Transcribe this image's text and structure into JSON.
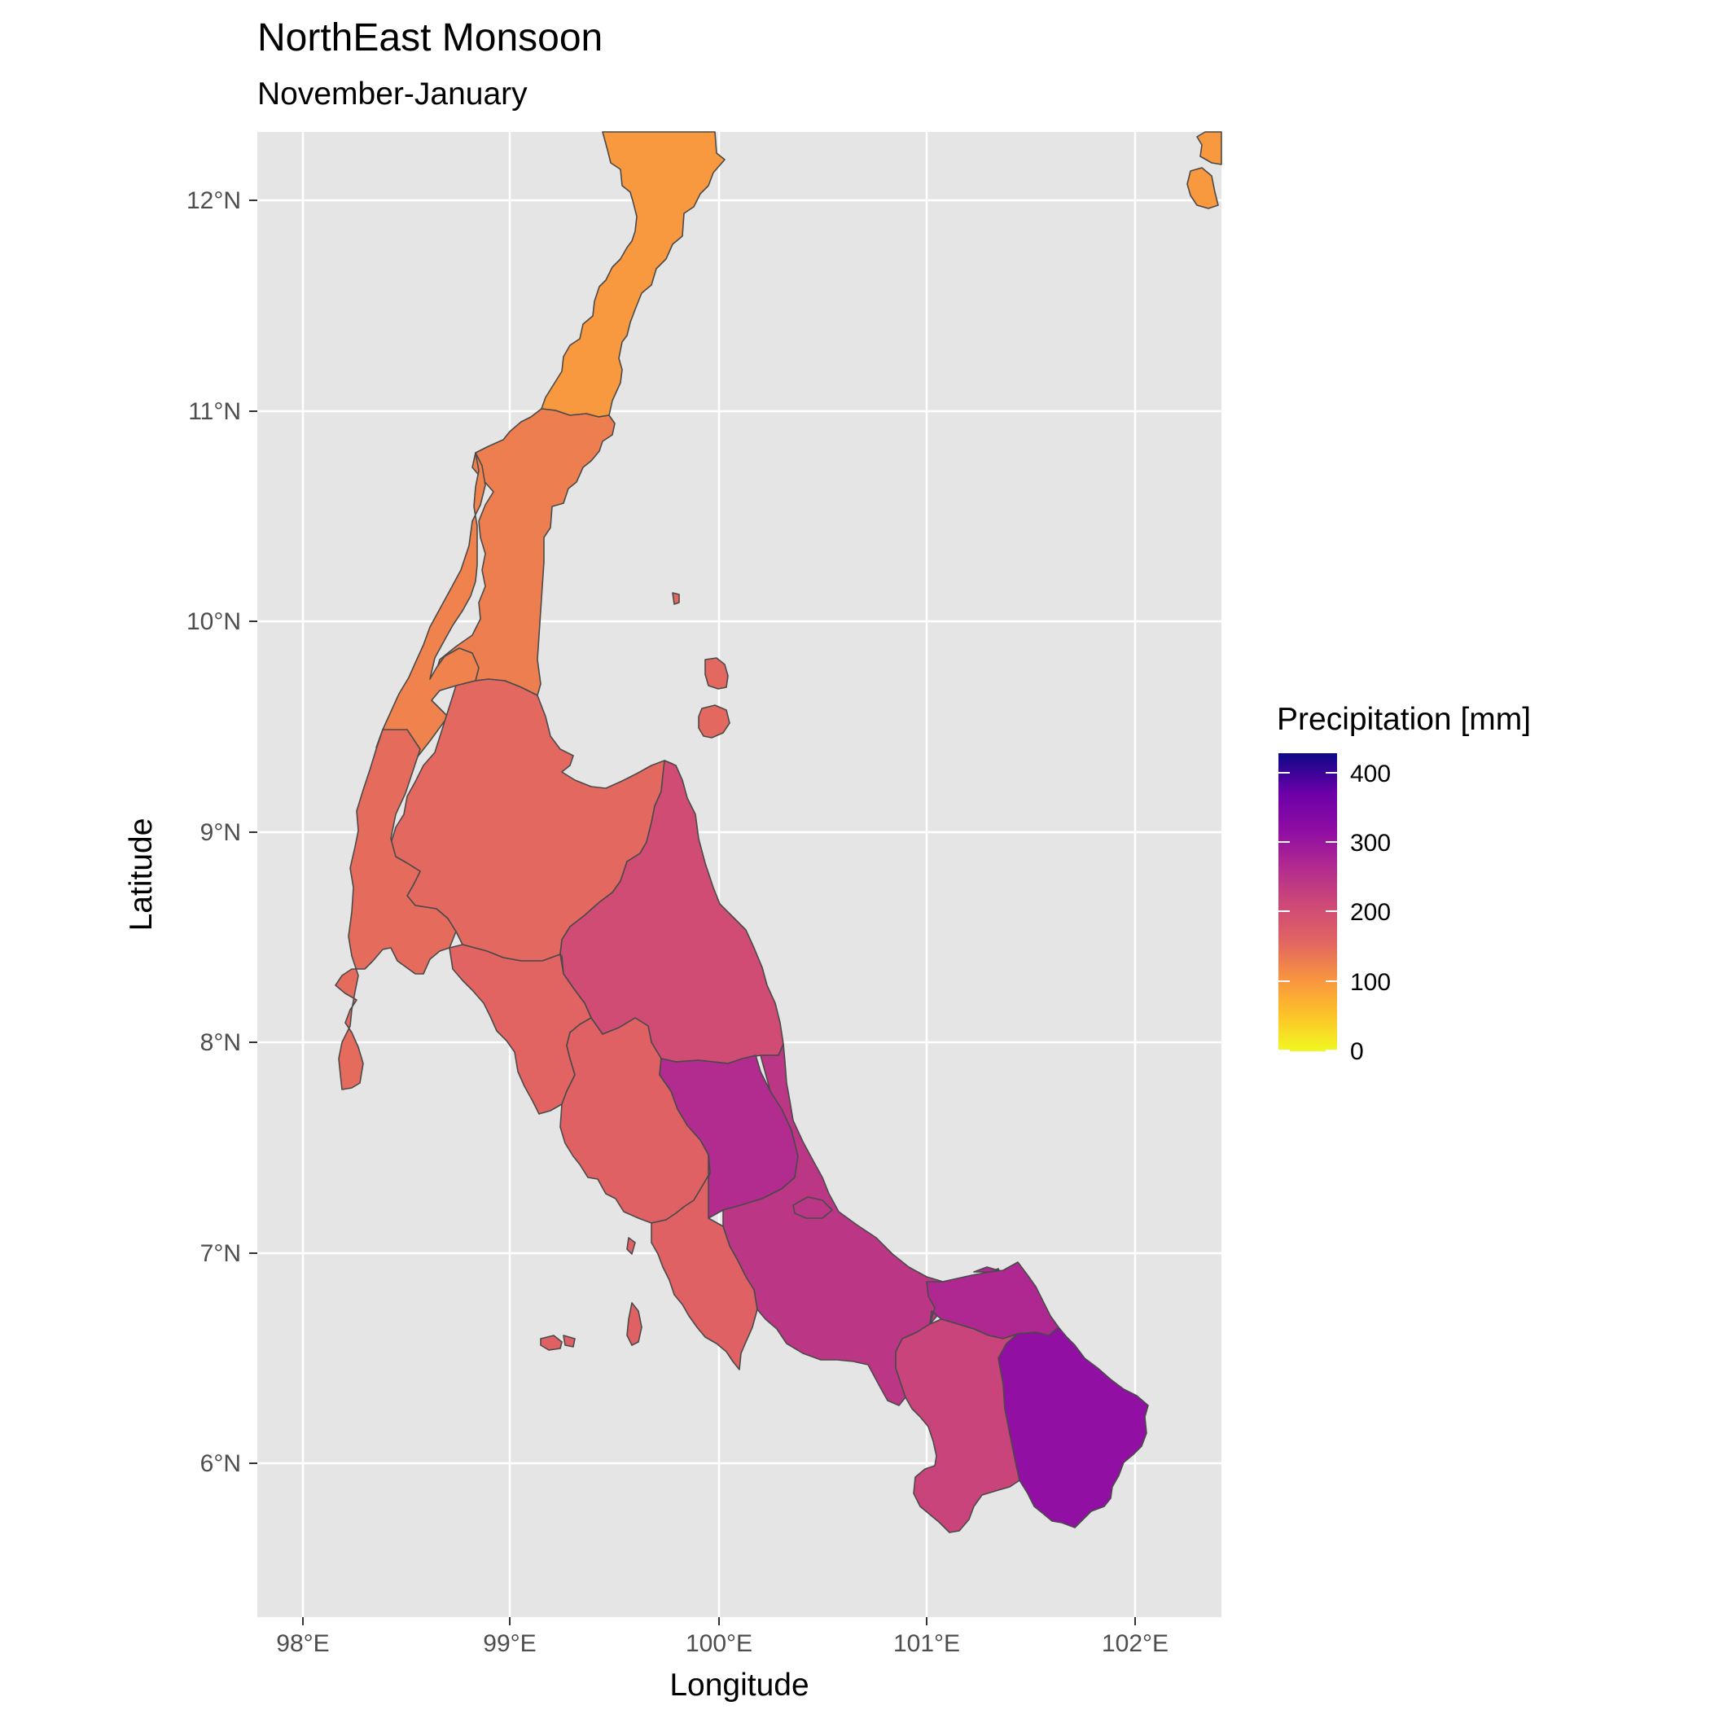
{
  "chart_data": {
    "type": "choropleth",
    "title": "NorthEast Monsoon",
    "subtitle": "November-January",
    "xlabel": "Longitude",
    "ylabel": "Latitude",
    "x_ticks": [
      "98°E",
      "99°E",
      "100°E",
      "101°E",
      "102°E"
    ],
    "y_ticks": [
      "6°N",
      "7°N",
      "8°N",
      "9°N",
      "10°N",
      "11°N",
      "12°N"
    ],
    "xlim": [
      97.78,
      102.42
    ],
    "ylim": [
      5.33,
      12.33
    ],
    "grid": true,
    "colorscale": "plasma (reversed)",
    "legend": {
      "title": "Precipitation [mm]",
      "position": "right",
      "range": [
        0,
        430
      ],
      "ticks": [
        "0",
        "100",
        "200",
        "300",
        "400"
      ]
    },
    "regions_mm": {
      "prachuap-khiri-khan": 100,
      "chumphon": 130,
      "ranong": 125,
      "surat-thani": 155,
      "nakhon-si-thammarat": 205,
      "phang-nga": 150,
      "krabi": 160,
      "trang": 165,
      "phatthalung": 265,
      "songkhla": 245,
      "satun": 165,
      "pattani": 270,
      "yala": 220,
      "narathiwat": 315,
      "phetchaburi-coast": 100
    }
  },
  "colors": {
    "panel": "#e5e5e5",
    "grid": "#ffffff",
    "border": "#4a4a4a"
  }
}
